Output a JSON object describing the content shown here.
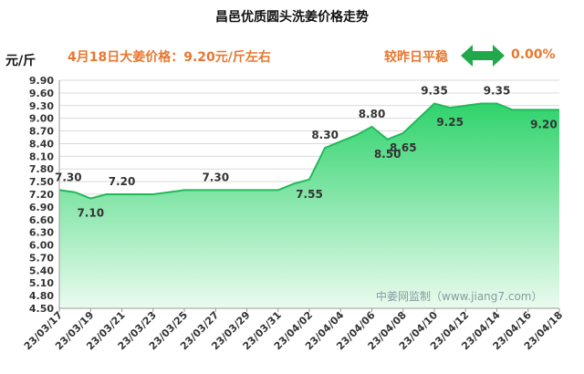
{
  "header": {
    "title": "昌邑优质圆头洗姜价格走势",
    "unit": "元/斤",
    "price_text": "4月18日大姜价格：9.20元/斤左右",
    "compare_text": "较昨日平稳",
    "change_pct": "0.00%",
    "watermark": "中姜网监制（www.jiang7.com）"
  },
  "colors": {
    "accent": "#e8772e",
    "line": "#22b85a",
    "fill_top": "#2fd36c",
    "fill_bottom": "#eafbef",
    "grid": "#d9d9d9"
  },
  "chart_data": {
    "type": "area",
    "ylabel": "元/斤",
    "ylim": [
      4.5,
      9.9
    ],
    "yticks": [
      4.5,
      4.8,
      5.1,
      5.4,
      5.7,
      6.0,
      6.3,
      6.6,
      6.9,
      7.2,
      7.5,
      7.8,
      8.1,
      8.4,
      8.7,
      9.0,
      9.3,
      9.6,
      9.9
    ],
    "x": [
      "23/03/17",
      "23/03/18",
      "23/03/19",
      "23/03/20",
      "23/03/21",
      "23/03/22",
      "23/03/23",
      "23/03/24",
      "23/03/25",
      "23/03/26",
      "23/03/27",
      "23/03/28",
      "23/03/29",
      "23/03/30",
      "23/03/31",
      "23/04/01",
      "23/04/02",
      "23/04/03",
      "23/04/04",
      "23/04/05",
      "23/04/06",
      "23/04/07",
      "23/04/08",
      "23/04/09",
      "23/04/10",
      "23/04/11",
      "23/04/12",
      "23/04/13",
      "23/04/14",
      "23/04/15",
      "23/04/16",
      "23/04/17",
      "23/04/18"
    ],
    "xtick_labels": [
      "23/03/17",
      "23/03/19",
      "23/03/21",
      "23/03/23",
      "23/03/25",
      "23/03/27",
      "23/03/29",
      "23/03/31",
      "23/04/02",
      "23/04/04",
      "23/04/06",
      "23/04/08",
      "23/04/10",
      "23/04/12",
      "23/04/14",
      "23/04/16",
      "23/04/18"
    ],
    "values": [
      7.3,
      7.25,
      7.1,
      7.2,
      7.2,
      7.2,
      7.2,
      7.25,
      7.3,
      7.3,
      7.3,
      7.3,
      7.3,
      7.3,
      7.3,
      7.45,
      7.55,
      8.3,
      8.45,
      8.6,
      8.8,
      8.5,
      8.65,
      9.0,
      9.35,
      9.25,
      9.3,
      9.35,
      9.35,
      9.2,
      9.2,
      9.2,
      9.2
    ],
    "data_labels": [
      {
        "index": 0,
        "text": "7.30"
      },
      {
        "index": 2,
        "text": "7.10"
      },
      {
        "index": 4,
        "text": "7.20"
      },
      {
        "index": 10,
        "text": "7.30"
      },
      {
        "index": 16,
        "text": "7.55"
      },
      {
        "index": 17,
        "text": "8.30"
      },
      {
        "index": 20,
        "text": "8.80"
      },
      {
        "index": 21,
        "text": "8.50"
      },
      {
        "index": 22,
        "text": "8.65"
      },
      {
        "index": 24,
        "text": "9.35"
      },
      {
        "index": 25,
        "text": "9.25"
      },
      {
        "index": 28,
        "text": "9.35"
      },
      {
        "index": 31,
        "text": "9.20"
      }
    ],
    "grid": true,
    "legend": "none"
  }
}
